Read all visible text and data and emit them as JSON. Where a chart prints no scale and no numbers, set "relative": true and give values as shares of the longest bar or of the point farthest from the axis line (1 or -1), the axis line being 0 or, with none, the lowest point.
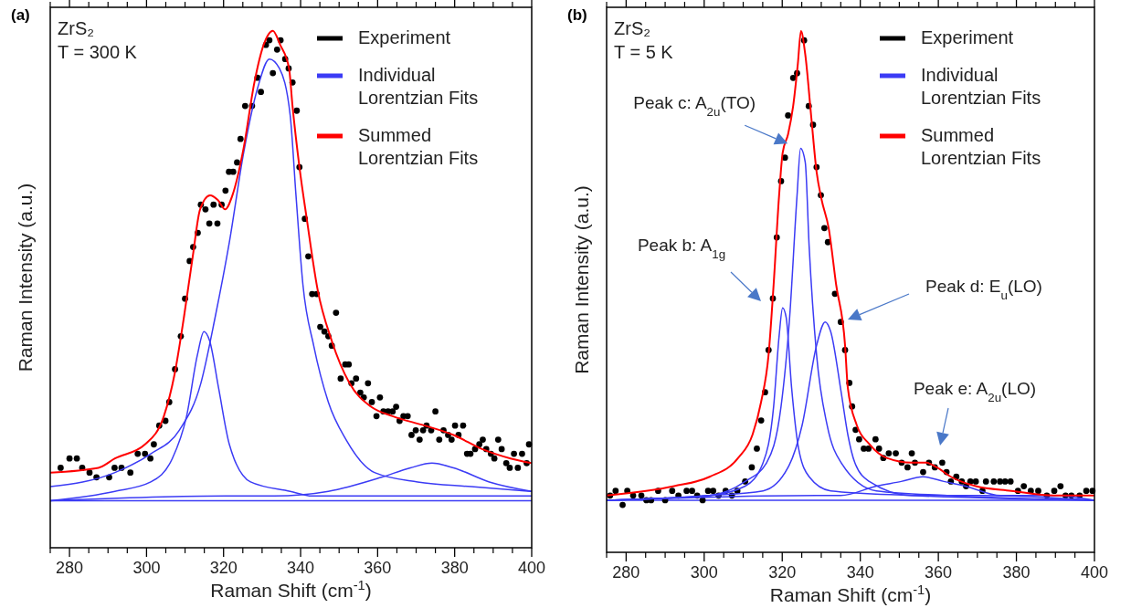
{
  "chart_data": [
    {
      "type": "line",
      "title": "(a)",
      "xlabel": "Raman Shift (cm$^{-1}$)",
      "ylabel": "Raman Intensity (a.u.)",
      "relative": true,
      "xlim": [
        275,
        400
      ],
      "xticks": [
        280,
        300,
        320,
        340,
        360,
        380,
        400
      ],
      "legend": "top right",
      "annotations": [
        "ZrS₂",
        "T = 300 K"
      ],
      "ref_lines": [
        {
          "axis": "y",
          "value": 0,
          "color": "#3b3bf5"
        }
      ],
      "series": [
        {
          "name": "Experiment",
          "type": "scatter",
          "marker": "circle",
          "color": "#000000",
          "x": [
            277.7,
            280,
            281.9,
            283.3,
            285.2,
            287,
            290.3,
            291.7,
            293.5,
            295.8,
            297.7,
            299.6,
            301,
            301.9,
            303.3,
            304.9,
            305.9,
            307.4,
            308.9,
            310,
            311.2,
            312.1,
            313.3,
            314.1,
            315.3,
            316.3,
            317.4,
            318.4,
            319.5,
            320.5,
            321.4,
            322.5,
            323.5,
            324.4,
            325.6,
            327.4,
            328.8,
            329.7,
            331,
            331.9,
            332.8,
            333.9,
            334.8,
            336,
            336.9,
            337.9,
            339,
            339.7,
            341.1,
            342,
            343,
            344.2,
            345.1,
            346.2,
            347.2,
            348.1,
            349.2,
            350.4,
            351.6,
            352.5,
            353.2,
            354.4,
            355.5,
            356.4,
            357.5,
            358.5,
            359.7,
            360.6,
            361.5,
            362.7,
            363.9,
            364.8,
            365.7,
            366.7,
            367.8,
            368.8,
            369.9,
            370.9,
            371.8,
            372.7,
            373.9,
            375,
            376,
            377.1,
            378.3,
            379.2,
            380.1,
            381,
            382.2,
            383.2,
            384.1,
            385.3,
            386.4,
            387.3,
            388.2,
            389.4,
            390.3,
            391.3,
            392.2,
            393.4,
            394.3,
            395.4,
            396.4,
            397.5,
            398.7,
            399.3
          ],
          "values": [
            0.07,
            0.09,
            0.09,
            0.07,
            0.06,
            0.05,
            0.05,
            0.07,
            0.07,
            0.06,
            0.1,
            0.1,
            0.09,
            0.12,
            0.16,
            0.17,
            0.21,
            0.28,
            0.35,
            0.43,
            0.51,
            0.54,
            0.57,
            0.63,
            0.62,
            0.59,
            0.63,
            0.59,
            0.63,
            0.66,
            0.7,
            0.7,
            0.72,
            0.77,
            0.84,
            0.84,
            0.9,
            0.87,
            0.97,
            0.98,
            0.91,
            0.96,
            0.98,
            0.94,
            0.92,
            0.89,
            0.83,
            0.71,
            0.6,
            0.52,
            0.44,
            0.44,
            0.37,
            0.36,
            0.35,
            0.33,
            0.4,
            0.26,
            0.29,
            0.29,
            0.25,
            0.26,
            0.23,
            0.22,
            0.25,
            0.21,
            0.18,
            0.22,
            0.19,
            0.19,
            0.19,
            0.2,
            0.17,
            0.18,
            0.18,
            0.14,
            0.15,
            0.13,
            0.15,
            0.16,
            0.15,
            0.19,
            0.13,
            0.15,
            0.14,
            0.13,
            0.16,
            0.14,
            0.16,
            0.1,
            0.1,
            0.11,
            0.12,
            0.13,
            0.11,
            0.1,
            0.09,
            0.13,
            0.11,
            0.08,
            0.07,
            0.1,
            0.07,
            0.1,
            0.08,
            0.12
          ]
        },
        {
          "name": "Individual Lorentzian Fits",
          "color": "#3b3bf5",
          "x": [
            275,
            291.8,
            301.1,
            308.5,
            314.1,
            317.8,
            321.5,
            325.2,
            328.9,
            331.9,
            334.5,
            337.3,
            338.8,
            340.6,
            343.4,
            347.2,
            351.8,
            359.2,
            370.4,
            384.3,
            400
          ],
          "values": [
            0.03,
            0.06,
            0.1,
            0.15,
            0.25,
            0.39,
            0.55,
            0.74,
            0.88,
            0.94,
            0.92,
            0.82,
            0.65,
            0.46,
            0.33,
            0.21,
            0.13,
            0.06,
            0.04,
            0.03,
            0.02
          ]
        },
        {
          "color": "#3b3bf5",
          "x": [
            275,
            291.8,
            301.1,
            306.7,
            310.4,
            313.2,
            314.9,
            316.4,
            318.7,
            321.5,
            327,
            337.3,
            343,
            370,
            400
          ],
          "values": [
            0,
            0.02,
            0.04,
            0.09,
            0.18,
            0.31,
            0.36,
            0.34,
            0.24,
            0.12,
            0.04,
            0.02,
            0.01,
            0.01,
            0.01
          ]
        },
        {
          "color": "#3b3bf5",
          "x": [
            275,
            320.4,
            333.2,
            347.2,
            361,
            368.5,
            374.1,
            379.7,
            389,
            400
          ],
          "values": [
            0,
            0.01,
            0.01,
            0.02,
            0.05,
            0.07,
            0.08,
            0.07,
            0.04,
            0.02
          ]
        },
        {
          "name": "Summed Lorentzian Fits",
          "color": "#ff0000",
          "x": [
            275,
            287.5,
            291.8,
            299.6,
            304.5,
            307.3,
            309.7,
            312,
            313.9,
            316.5,
            318.5,
            320.4,
            322.3,
            325.2,
            328,
            330.4,
            332.8,
            334.7,
            337,
            337.9,
            339.7,
            341.6,
            344.4,
            348.1,
            352.7,
            358.3,
            363.9,
            372.2,
            379.7,
            387.1,
            394.5,
            400
          ],
          "values": [
            0.06,
            0.07,
            0.09,
            0.12,
            0.18,
            0.27,
            0.39,
            0.52,
            0.62,
            0.65,
            0.64,
            0.62,
            0.65,
            0.75,
            0.89,
            0.97,
            1,
            0.97,
            0.92,
            0.84,
            0.71,
            0.6,
            0.45,
            0.34,
            0.25,
            0.2,
            0.18,
            0.16,
            0.14,
            0.11,
            0.09,
            0.08
          ]
        }
      ]
    },
    {
      "type": "line",
      "title": "(b)",
      "xlabel": "Raman Shift (cm$^{-1}$)",
      "ylabel": "Raman Intensity (a.u.)",
      "relative": true,
      "xlim": [
        275,
        400
      ],
      "xticks": [
        280,
        300,
        320,
        340,
        360,
        380,
        400
      ],
      "legend": "top right",
      "annotations": [
        "ZrS₂",
        "T = 5 K",
        "Peak b: A$_{1g}$",
        "Peak d: E$_{u}$(LO)",
        "Peak e: A$_{2u}$(LO)",
        {
          "text": "Peak c: A$_{2u}$(TO)",
          "x": 321.4,
          "y": 0.76
        }
      ],
      "ref_lines": [
        {
          "axis": "y",
          "value": 0,
          "color": "#3b3bf5"
        }
      ],
      "series": [
        {
          "name": "Experiment",
          "type": "scatter",
          "marker": "circle",
          "color": "#000000",
          "x": [
            275.9,
            277.3,
            279.1,
            280.3,
            281.8,
            283.9,
            285.2,
            286.4,
            288.2,
            290,
            291.8,
            293.4,
            295.5,
            296.9,
            298.2,
            299.6,
            301,
            302.3,
            303.7,
            305.5,
            307.1,
            308.5,
            310.5,
            312.2,
            313.5,
            314.6,
            315.6,
            316.5,
            317.6,
            318.6,
            319.7,
            320.7,
            321.5,
            322.8,
            323.8,
            325.6,
            326.8,
            327.9,
            328.8,
            329.9,
            330.8,
            331.7,
            333.5,
            335,
            336.1,
            337.2,
            337.9,
            338.8,
            339.7,
            340.9,
            342.1,
            343.9,
            344.8,
            345.9,
            347.3,
            349.1,
            350.6,
            352.1,
            353.2,
            354,
            356.1,
            357.6,
            359.1,
            361,
            362.1,
            363.2,
            364.6,
            366,
            367.1,
            368.2,
            369.6,
            371.3,
            372.2,
            374.2,
            375.8,
            377.1,
            378.5,
            380.4,
            381.9,
            383.7,
            385.6,
            387.8,
            389.7,
            391.3,
            392.6,
            394.1,
            396.2,
            397.9,
            399.5
          ],
          "values": [
            0.01,
            0.02,
            -0.01,
            0.02,
            0.01,
            0.01,
            0,
            0,
            0.02,
            0,
            0.02,
            0.01,
            0.02,
            0.02,
            0.01,
            0,
            0.02,
            0.02,
            0.01,
            0.02,
            0.01,
            0.02,
            0.04,
            0.07,
            0.11,
            0.17,
            0.23,
            0.32,
            0.43,
            0.56,
            0.68,
            0.73,
            0.82,
            0.9,
            0.91,
            0.98,
            0.84,
            0.8,
            0.71,
            0.65,
            0.58,
            0.55,
            0.44,
            0.38,
            0.32,
            0.25,
            0.2,
            0.15,
            0.13,
            0.11,
            0.11,
            0.13,
            0.11,
            0.09,
            0.1,
            0.1,
            0.08,
            0.07,
            0.1,
            0.08,
            0.06,
            0.08,
            0.07,
            0.08,
            0.06,
            0.04,
            0.05,
            0.04,
            0.03,
            0.04,
            0.04,
            0.02,
            0.04,
            0.04,
            0.04,
            0.04,
            0.04,
            0.02,
            0.03,
            0.02,
            0.02,
            0.01,
            0.02,
            0.03,
            0.01,
            0.01,
            0.01,
            0.02,
            0.02
          ]
        },
        {
          "name": "Individual Lorentzian Fits",
          "color": "#3b3bf5",
          "x": [
            275,
            301.4,
            310.5,
            315.1,
            317.8,
            319.2,
            320.1,
            321,
            322.4,
            324.2,
            326.9,
            332.4,
            353.2,
            400
          ],
          "values": [
            0,
            0.01,
            0.03,
            0.08,
            0.2,
            0.35,
            0.41,
            0.39,
            0.24,
            0.11,
            0.05,
            0.02,
            0.01,
            0
          ]
        },
        {
          "color": "#3b3bf5",
          "x": [
            275,
            301.4,
            310.5,
            316,
            319.7,
            321.9,
            323.8,
            324.7,
            325.9,
            326.9,
            328.8,
            331.5,
            335.1,
            344.1,
            362.3,
            400
          ],
          "values": [
            0,
            0.01,
            0.04,
            0.08,
            0.2,
            0.39,
            0.65,
            0.75,
            0.72,
            0.54,
            0.31,
            0.16,
            0.08,
            0.02,
            0.01,
            0
          ]
        },
        {
          "color": "#3b3bf5",
          "x": [
            275,
            301.4,
            315.1,
            321.5,
            325.1,
            328.8,
            331,
            332.4,
            335.1,
            336.8,
            338.6,
            342.3,
            353.2,
            371.4,
            400
          ],
          "values": [
            0,
            0.01,
            0.02,
            0.07,
            0.16,
            0.33,
            0.38,
            0.36,
            0.23,
            0.14,
            0.08,
            0.04,
            0.01,
            0.01,
            0
          ]
        },
        {
          "color": "#3b3bf5",
          "x": [
            275,
            328.8,
            335,
            344.1,
            350.5,
            356,
            361.4,
            366.9,
            376,
            389.7,
            400
          ],
          "values": [
            0,
            0.01,
            0.01,
            0.03,
            0.04,
            0.05,
            0.04,
            0.03,
            0.01,
            0.01,
            0
          ]
        },
        {
          "name": "Summed Lorentzian Fits",
          "color": "#ff0000",
          "x": [
            275,
            292.3,
            301.4,
            308.7,
            312.4,
            314.6,
            316.5,
            317.8,
            319.2,
            320.1,
            321.5,
            322.8,
            324,
            324.8,
            325.9,
            327.4,
            328.8,
            330.1,
            331.9,
            333.8,
            336.1,
            336.8,
            339.1,
            342.3,
            346.8,
            353.2,
            356.9,
            359.6,
            363.2,
            369.6,
            378.7,
            389.7,
            400
          ],
          "values": [
            0.01,
            0.03,
            0.05,
            0.09,
            0.14,
            0.21,
            0.31,
            0.46,
            0.65,
            0.74,
            0.78,
            0.84,
            0.93,
            1,
            0.95,
            0.82,
            0.7,
            0.64,
            0.58,
            0.46,
            0.33,
            0.24,
            0.16,
            0.12,
            0.09,
            0.08,
            0.08,
            0.07,
            0.05,
            0.03,
            0.02,
            0.01,
            0.01
          ]
        }
      ]
    }
  ]
}
